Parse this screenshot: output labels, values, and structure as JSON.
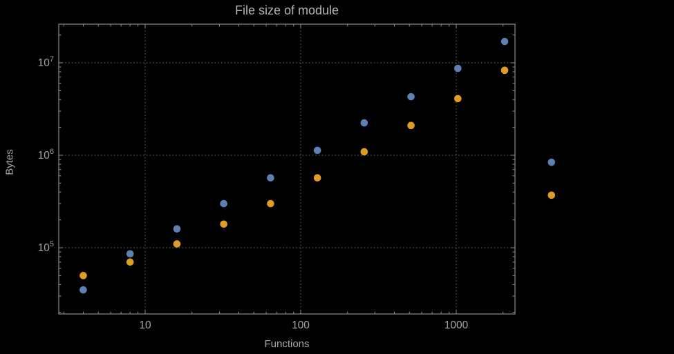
{
  "window": {
    "background": "#000000"
  },
  "chart_data": {
    "type": "scatter",
    "title": "File size of module",
    "xlabel": "Functions",
    "ylabel": "Bytes",
    "x_scale": "log",
    "y_scale": "log",
    "x_range_approx": [
      2.8,
      2400
    ],
    "y_range_approx": [
      19000,
      26000000
    ],
    "grid": {
      "style": "dotted",
      "x_lines": [
        10,
        100,
        1000
      ],
      "y_lines": [
        100000,
        1000000,
        10000000
      ]
    },
    "legend": "none",
    "x_ticks": [
      {
        "value": 10,
        "label": "10"
      },
      {
        "value": 100,
        "label": "100"
      },
      {
        "value": 1000,
        "label": "1000"
      }
    ],
    "y_ticks": [
      {
        "value": 100000,
        "base": "10",
        "exp": "5"
      },
      {
        "value": 1000000,
        "base": "10",
        "exp": "6"
      },
      {
        "value": 10000000,
        "base": "10",
        "exp": "7"
      }
    ],
    "series": [
      {
        "name": "series-1",
        "color": "#5E81B5",
        "points": [
          [
            4,
            35000
          ],
          [
            8,
            86000
          ],
          [
            16,
            160000
          ],
          [
            32,
            300000
          ],
          [
            64,
            570000
          ],
          [
            128,
            1130000
          ],
          [
            256,
            2240000
          ],
          [
            512,
            4300000
          ],
          [
            1024,
            8700000
          ],
          [
            2048,
            17000000
          ],
          [
            4096,
            840000
          ]
        ]
      },
      {
        "name": "series-2",
        "color": "#E19C24",
        "points": [
          [
            4,
            50000
          ],
          [
            8,
            70000
          ],
          [
            16,
            110000
          ],
          [
            32,
            180000
          ],
          [
            64,
            300000
          ],
          [
            128,
            570000
          ],
          [
            256,
            1090000
          ],
          [
            512,
            2100000
          ],
          [
            1024,
            4100000
          ],
          [
            2048,
            8300000
          ],
          [
            4096,
            370000
          ]
        ]
      }
    ],
    "colors": {
      "background": "#000000",
      "frame": "#8c8c8c",
      "grid": "#5e5e5e",
      "text": "#a3a3a3",
      "title": "#b5b5b5"
    }
  }
}
